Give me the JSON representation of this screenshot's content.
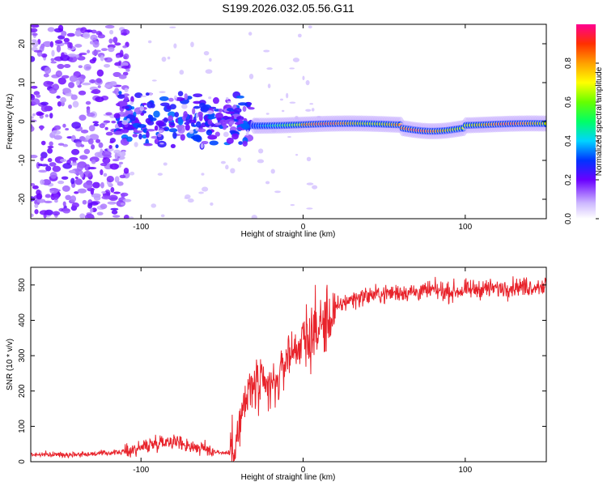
{
  "title": "S199.2026.032.05.56.G11",
  "chart_data": [
    {
      "type": "heatmap",
      "xlabel": "Height of straight line (km)",
      "ylabel": "Frequency (Hz)",
      "xlim": [
        -168,
        150
      ],
      "ylim": [
        -25,
        25
      ],
      "xticks": [
        -100,
        0,
        100
      ],
      "yticks": [
        -20,
        -10,
        0,
        10,
        20
      ],
      "colorbar": {
        "label": "Normalized spectral amplitude",
        "range": [
          0,
          1
        ],
        "ticks": [
          0.0,
          0.2,
          0.4,
          0.6,
          0.8
        ]
      },
      "dominant_frequency_hz": -0.8,
      "description_points": [
        {
          "x": -140,
          "y": 0,
          "amp": 0.2
        },
        {
          "x": -60,
          "y": 0,
          "amp": 0.35
        },
        {
          "x": -10,
          "y": -0.5,
          "amp": 0.9
        },
        {
          "x": 40,
          "y": -0.8,
          "amp": 1.0
        },
        {
          "x": 90,
          "y": -2.5,
          "amp": 0.95
        },
        {
          "x": 140,
          "y": -0.8,
          "amp": 1.0
        }
      ]
    },
    {
      "type": "line",
      "xlabel": "Height of straight line (km)",
      "ylabel": "SNR (10 * v/v)",
      "xlim": [
        -168,
        150
      ],
      "ylim": [
        0,
        550
      ],
      "xticks": [
        -100,
        0,
        100
      ],
      "yticks": [
        0,
        100,
        200,
        300,
        400,
        500
      ],
      "series": [
        {
          "name": "SNR",
          "color": "#e8232b",
          "x": [
            -168,
            -150,
            -130,
            -110,
            -100,
            -90,
            -80,
            -70,
            -60,
            -50,
            -45,
            -40,
            -35,
            -30,
            -25,
            -20,
            -15,
            -10,
            -5,
            0,
            5,
            10,
            15,
            20,
            25,
            30,
            40,
            50,
            60,
            70,
            80,
            90,
            100,
            110,
            120,
            130,
            140,
            150
          ],
          "y": [
            20,
            20,
            22,
            28,
            40,
            55,
            60,
            45,
            35,
            25,
            25,
            80,
            180,
            220,
            200,
            210,
            230,
            300,
            320,
            340,
            360,
            380,
            400,
            430,
            450,
            460,
            470,
            475,
            480,
            480,
            485,
            480,
            485,
            490,
            490,
            495,
            495,
            500
          ]
        }
      ]
    }
  ]
}
